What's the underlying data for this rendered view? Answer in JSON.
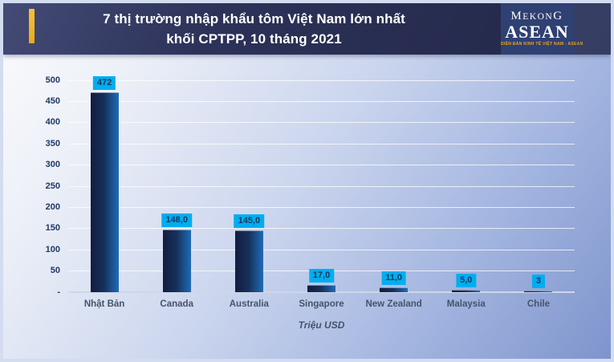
{
  "header": {
    "title_line1": "7 thị trường nhập khẩu tôm Việt Nam lớn nhất",
    "title_line2": "khối CPTPP, 10 tháng 2021",
    "logo": {
      "word1_first": "M",
      "word1_mid": "EKON",
      "word1_last": "G",
      "word2": "ASEAN",
      "tagline": "DIỄN ĐÀN KINH TẾ VIỆT NAM - ASEAN"
    }
  },
  "chart_data": {
    "type": "bar",
    "categories": [
      "Nhật Bản",
      "Canada",
      "Australia",
      "Singapore",
      "New Zealand",
      "Malaysia",
      "Chile"
    ],
    "values": [
      472,
      148,
      145,
      17,
      11,
      5,
      3
    ],
    "value_labels": [
      "472",
      "148,0",
      "145,0",
      "17,0",
      "11,0",
      "5,0",
      "3"
    ],
    "title": "7 thị trường nhập khẩu tôm Việt Nam lớn nhất khối CPTPP, 10 tháng 2021",
    "xlabel": "Triệu USD",
    "ylabel": "",
    "ylim": [
      0,
      500
    ],
    "ytick_step": 50,
    "ytick_labels": [
      "-",
      "50",
      "100",
      "150",
      "200",
      "250",
      "300",
      "350",
      "400",
      "450",
      "500"
    ],
    "grid": true,
    "legend": false,
    "colors": {
      "bar_gradient_dark": "#131d40",
      "bar_gradient_light": "#1e6cb8",
      "value_label_bg": "#00aeef",
      "value_label_text": "#17375e",
      "axis_text": "#1f3864",
      "category_text": "#44546a",
      "accent_yellow": "#eeb122",
      "header_bg": "#2c3258",
      "logo_tagline_color": "#f0a61c"
    }
  }
}
